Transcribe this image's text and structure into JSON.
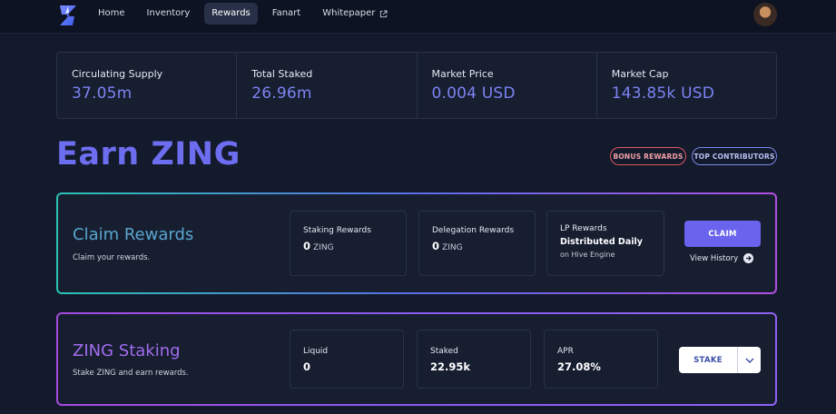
{
  "nav": {
    "items": [
      {
        "label": "Home",
        "active": false
      },
      {
        "label": "Inventory",
        "active": false
      },
      {
        "label": "Rewards",
        "active": true
      },
      {
        "label": "Fanart",
        "active": false
      },
      {
        "label": "Whitepaper",
        "active": false,
        "icon": "external-link-icon"
      }
    ]
  },
  "stats": [
    {
      "label": "Circulating Supply",
      "value": "37.05m"
    },
    {
      "label": "Total Staked",
      "value": "26.96m"
    },
    {
      "label": "Market Price",
      "value": "0.004 USD"
    },
    {
      "label": "Market Cap",
      "value": "143.85k USD"
    }
  ],
  "page": {
    "title": "Earn ZING",
    "bonus_label": "BONUS REWARDS",
    "top_label": "TOP CONTRIBUTORS"
  },
  "claim": {
    "title": "Claim Rewards",
    "subtitle": "Claim your rewards.",
    "staking": {
      "label": "Staking Rewards",
      "value": "0",
      "unit": "ZING"
    },
    "delegation": {
      "label": "Delegation Rewards",
      "value": "0",
      "unit": "ZING"
    },
    "lp": {
      "label": "LP Rewards",
      "value": "Distributed Daily",
      "sub": "on Hive Engine"
    },
    "button": "CLAIM",
    "history": "View History"
  },
  "staking": {
    "title": "ZING Staking",
    "subtitle": "Stake ZING and earn rewards.",
    "liquid": {
      "label": "Liquid",
      "value": "0"
    },
    "staked": {
      "label": "Staked",
      "value": "22.95k"
    },
    "apr": {
      "label": "APR",
      "value": "27.08%"
    },
    "button": "STAKE"
  },
  "colors": {
    "accent": "#6d6df0",
    "stat_value": "#7c83f2",
    "claim_button": "#6a63ee",
    "bonus_border": "#e0565f",
    "top_border": "#7b86e8"
  }
}
